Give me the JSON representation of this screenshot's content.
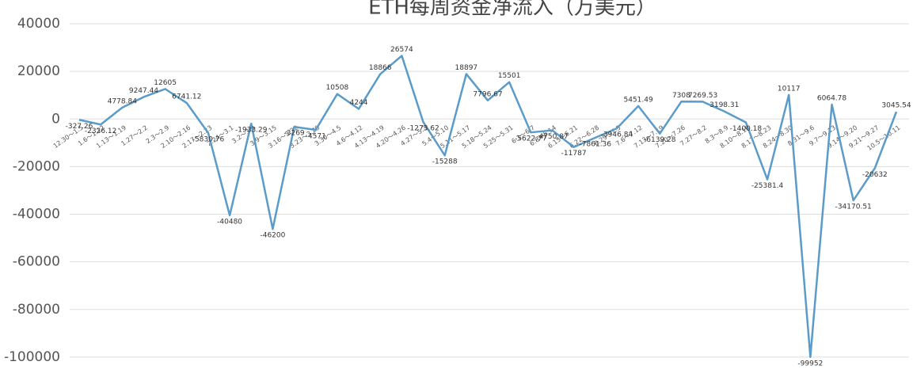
{
  "chart_data": {
    "type": "line",
    "title": "ETH每周资金净流入（万美元）",
    "categories": [
      "12.30～1.5",
      "1.6～1.12",
      "1.13～1.19",
      "1.27～2.2",
      "2.3～2.9",
      "2.10～2.16",
      "2.17～2.23",
      "2.24～3.1",
      "3.2～3.8",
      "3.9～3.15",
      "3.16～3.22",
      "3.23～3.29",
      "3.30～4.5",
      "4.6～4.12",
      "4.13～4.19",
      "4.20～4.26",
      "4.27～5.3",
      "5.4～5.10",
      "5.11～5.17",
      "5.18～5.24",
      "5.25～5.31",
      "6.1～6.7",
      "6.8～6.14",
      "6.15～6.21",
      "6.22～6.28",
      "6.29～7.5",
      "7.6～7.12",
      "7.13～7.19",
      "7.20～7.26",
      "7.27～8.2",
      "8.3～8.9",
      "8.10～8.16",
      "8.17～8.23",
      "8.24～8.30",
      "8.31～9.6",
      "9.7～9.13",
      "9.14～9.20",
      "9.21～9.27",
      "10.5～10.11"
    ],
    "values": [
      -327.26,
      -2326.12,
      4778.84,
      9247.44,
      12605,
      6741.12,
      -5830.76,
      -40480,
      -1933.29,
      -46200,
      -3269,
      -4571,
      10508,
      4244,
      18866,
      26574,
      -1273.62,
      -15288,
      18897,
      7796.67,
      15501,
      -5622.77,
      -4750.87,
      -11787,
      -7861.36,
      -3946.84,
      5451.49,
      -6139.28,
      7308,
      7269.53,
      3198.31,
      -1400.18,
      -25381.4,
      10117,
      -99952,
      6064.78,
      -34170.51,
      -20632,
      3045.54
    ],
    "color": "#5b9bc9",
    "ylim": [
      -115000,
      45000
    ],
    "yticks": [
      -100000,
      -80000,
      -60000,
      -40000,
      -20000,
      0,
      20000,
      40000
    ],
    "grid": true
  }
}
